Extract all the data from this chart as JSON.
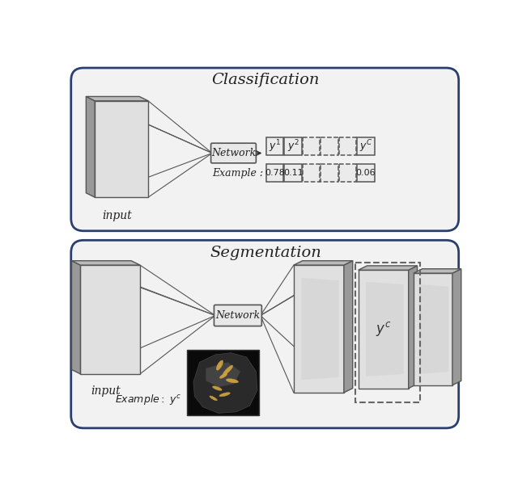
{
  "bg_color": "#ffffff",
  "border_color": "#2a3f6f",
  "top_title": "Classification",
  "bottom_title": "Segmentation",
  "network_label": "Network",
  "input_label": "input",
  "example_label": "Example :",
  "val1": "0.78",
  "val2": "0.11",
  "val3": "0.06",
  "panel_face": "#cccccc",
  "panel_face_light": "#e0e0e0",
  "panel_side": "#999999",
  "panel_top": "#bbbbbb",
  "panel_edge": "#555555",
  "box_bg": "#e8e8e8",
  "box_edge": "#555555",
  "outer_bg": "#f2f2f2",
  "line_color": "#555555"
}
